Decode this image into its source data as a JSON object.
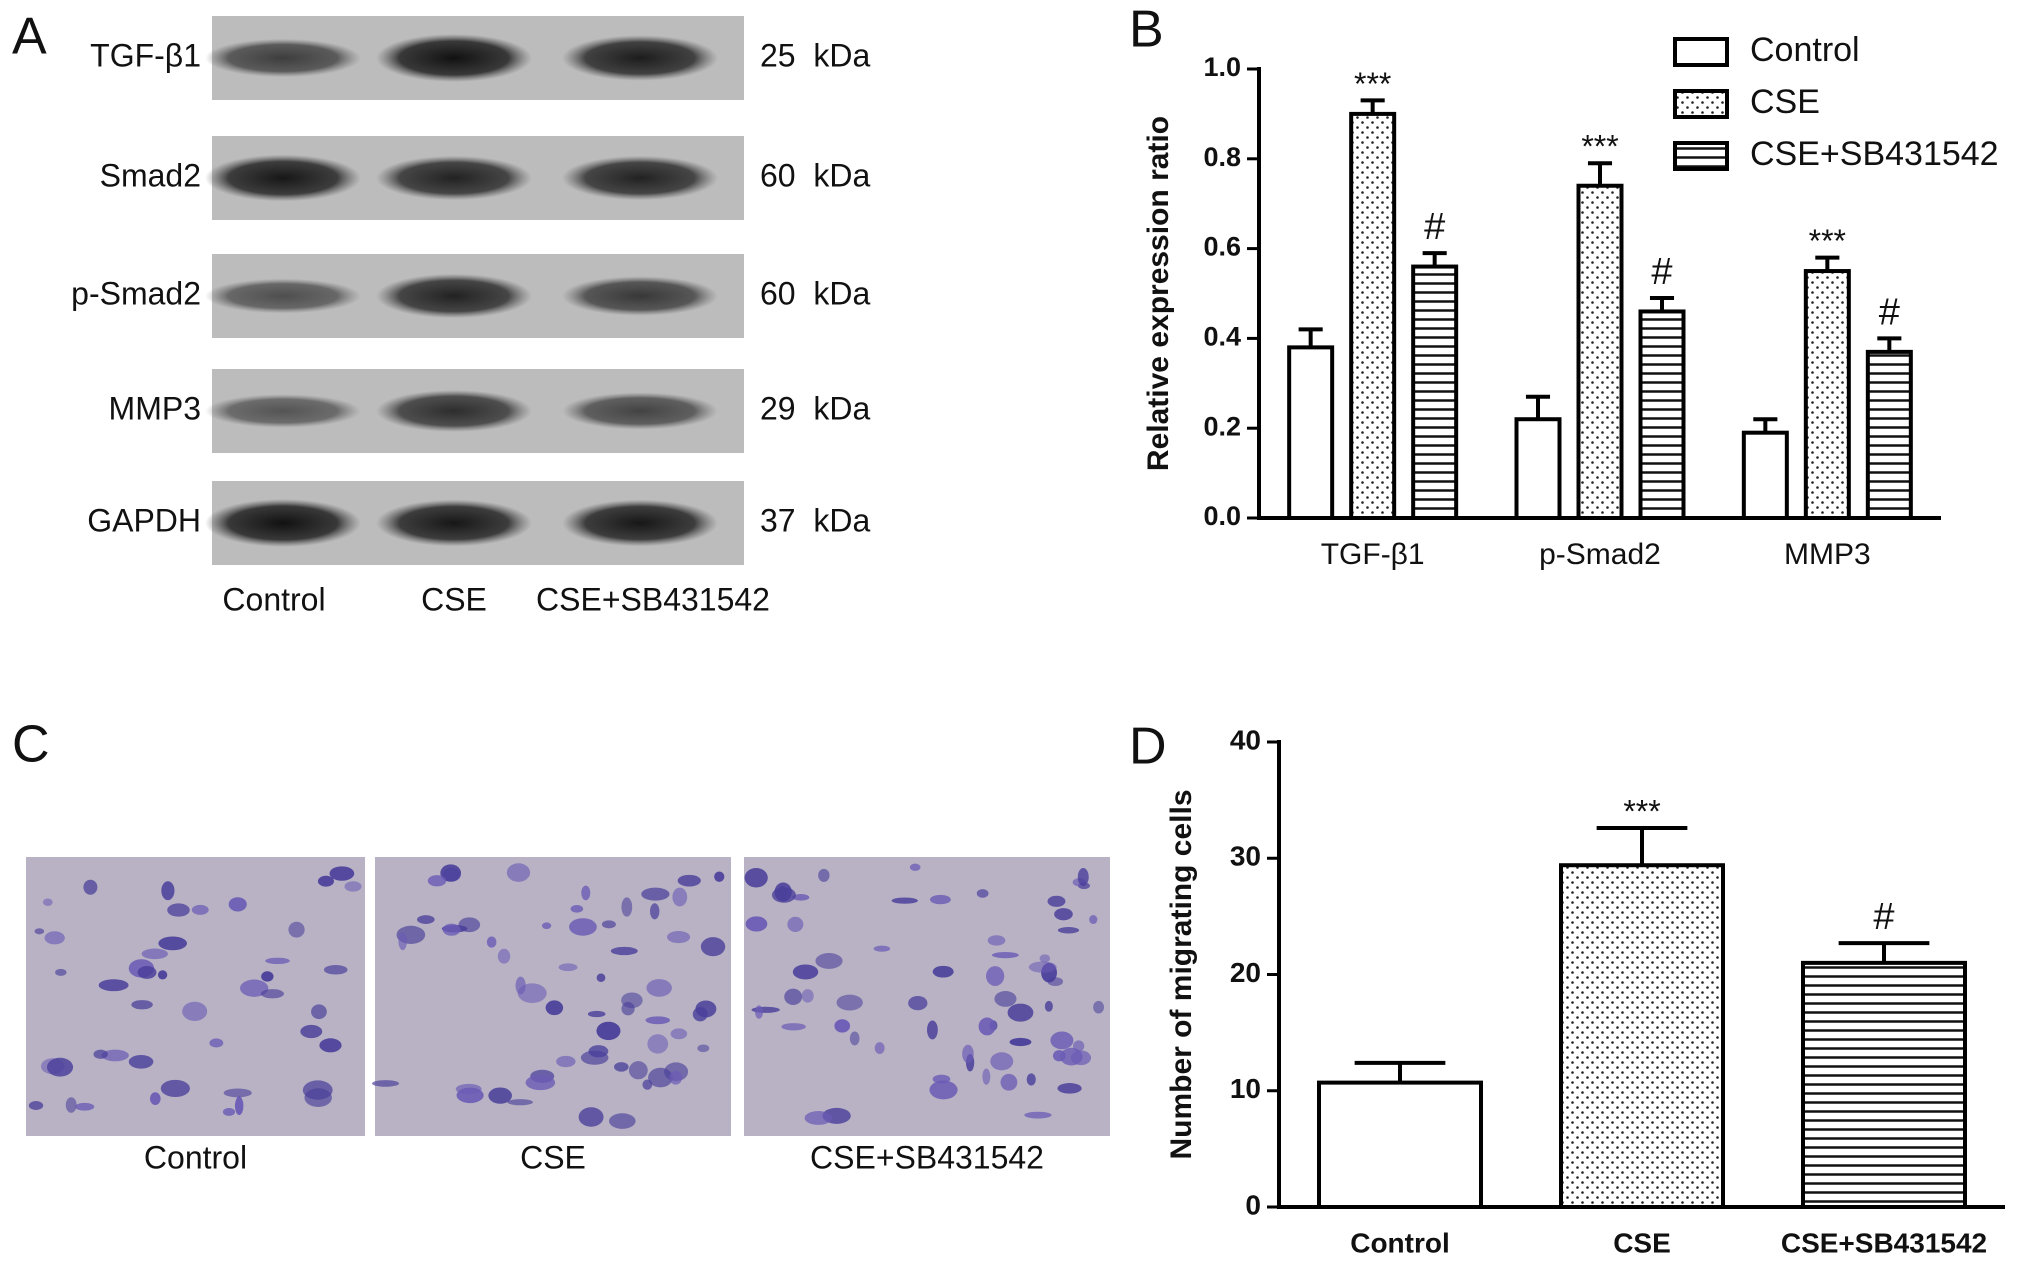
{
  "panels": {
    "a": {
      "label": "A",
      "bands": [
        {
          "name": "TGF-β1",
          "size": "25  kDa"
        },
        {
          "name": "Smad2",
          "size": "60  kDa"
        },
        {
          "name": "p-Smad2",
          "size": "60  kDa"
        },
        {
          "name": "MMP3",
          "size": "29  kDa"
        },
        {
          "name": "GAPDH",
          "size": "37  kDa"
        }
      ],
      "lanes": [
        "Control",
        "CSE",
        "CSE+SB431542"
      ]
    },
    "c": {
      "label": "C",
      "images": [
        "Control",
        "CSE",
        "CSE+SB431542"
      ]
    }
  },
  "chart_data": [
    {
      "type": "bar",
      "panel_label": "B",
      "ylabel": "Relative expression ratio",
      "categories": [
        "TGF-β1",
        "p-Smad2",
        "MMP3"
      ],
      "series": [
        {
          "name": "Control",
          "color": "#000000",
          "pattern": "none",
          "values": [
            0.38,
            0.22,
            0.19
          ],
          "errors": [
            0.04,
            0.05,
            0.03
          ]
        },
        {
          "name": "CSE",
          "color": "#000000",
          "pattern": "dots",
          "values": [
            0.9,
            0.74,
            0.55
          ],
          "errors": [
            0.03,
            0.05,
            0.03
          ],
          "annotations": [
            "***",
            "***",
            "***"
          ]
        },
        {
          "name": "CSE+SB431542",
          "color": "#000000",
          "pattern": "hlines",
          "values": [
            0.56,
            0.46,
            0.37
          ],
          "errors": [
            0.03,
            0.03,
            0.03
          ],
          "annotations": [
            "#",
            "#",
            "#"
          ]
        }
      ],
      "ylim": [
        0,
        1.0
      ],
      "yticks": [
        {
          "value": 0,
          "label": "0.0"
        },
        0.2,
        0.4,
        0.6,
        0.8,
        {
          "value": 1.0,
          "label": "1.0"
        }
      ],
      "legend": "top-right"
    },
    {
      "type": "bar",
      "panel_label": "D",
      "ylabel": "Number of migrating cells",
      "categories": [
        "Control",
        "CSE",
        "CSE+SB431542"
      ],
      "patterns": [
        "none",
        "dots",
        "hlines"
      ],
      "color": "#000000",
      "values": [
        10.7,
        29.4,
        21.0
      ],
      "errors": [
        1.7,
        3.2,
        1.7
      ],
      "annotations": [
        null,
        "***",
        "#"
      ],
      "ylim": [
        0,
        40
      ],
      "yticks": [
        0,
        10,
        20,
        30,
        40
      ]
    }
  ]
}
